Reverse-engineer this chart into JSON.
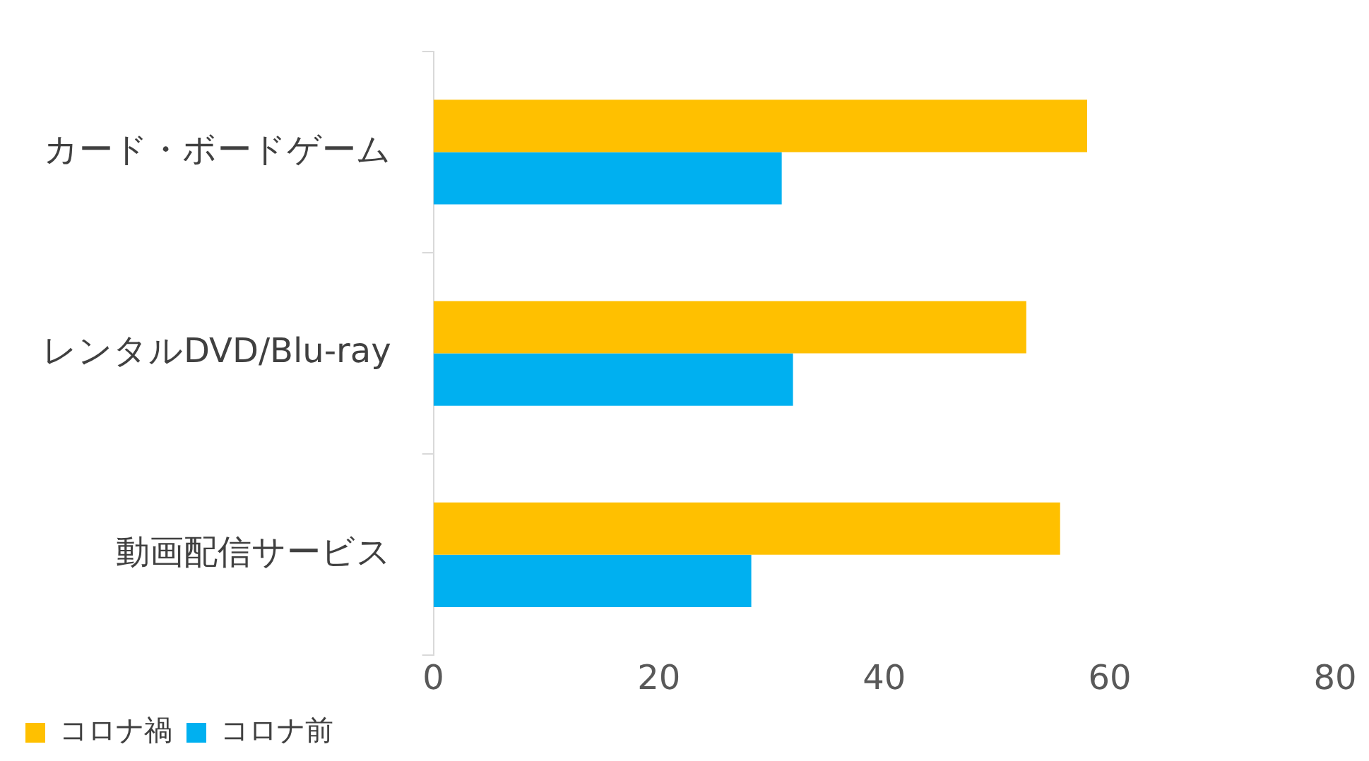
{
  "chart_data": {
    "type": "bar",
    "orientation": "horizontal",
    "categories": [
      "カード・ボードゲーム",
      "レンタルDVD/Blu-ray",
      "動画配信サービス"
    ],
    "series": [
      {
        "name": "コロナ禍",
        "color": "#ffc000",
        "values": [
          58,
          52.6,
          55.6
        ]
      },
      {
        "name": "コロナ前",
        "color": "#00b0f0",
        "values": [
          30.9,
          31.9,
          28.2
        ]
      }
    ],
    "xlim": [
      0,
      80
    ],
    "xticks": [
      0,
      20,
      40,
      60,
      80
    ],
    "grid": false,
    "legend": "bottom left"
  }
}
